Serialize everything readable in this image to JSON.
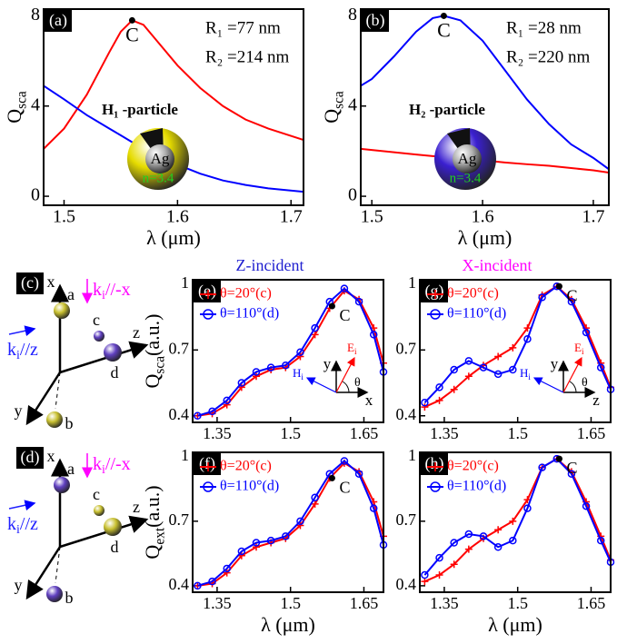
{
  "chart_data": [
    {
      "type": "line",
      "panel_label": "(a)",
      "x_label": "λ (μm)",
      "y_label": [
        "Q",
        "sca"
      ],
      "xlim": [
        1.482,
        1.711
      ],
      "ylim": [
        -0.4,
        8.3
      ],
      "xticks": [
        1.5,
        1.6,
        1.7
      ],
      "yticks": [
        0,
        4,
        8
      ],
      "x": [
        1.482,
        1.5,
        1.52,
        1.54,
        1.55,
        1.56,
        1.57,
        1.58,
        1.6,
        1.62,
        1.64,
        1.66,
        1.68,
        1.711
      ],
      "series": [
        {
          "color": "#ff0000",
          "values": [
            2.1,
            3.0,
            4.5,
            6.4,
            7.3,
            7.8,
            7.6,
            7.0,
            5.8,
            4.8,
            4.0,
            3.4,
            3.0,
            2.5
          ]
        },
        {
          "color": "#0000ff",
          "values": [
            4.9,
            4.3,
            3.6,
            3.0,
            2.7,
            2.4,
            2.15,
            1.9,
            1.4,
            1.0,
            0.7,
            0.5,
            0.35,
            0.2
          ]
        }
      ],
      "point": {
        "text": "C",
        "x": 1.56,
        "y": 7.8
      },
      "notes": [
        "R₁ =77 nm",
        "R₂ =214 nm"
      ],
      "particle": {
        "name": "H₁ -particle",
        "core": "Ag",
        "index": "n=3.4",
        "shell_color": "#e6dc00"
      }
    },
    {
      "type": "line",
      "panel_label": "(b)",
      "x_label": "λ (μm)",
      "y_label": [
        "Q",
        "sca"
      ],
      "xlim": [
        1.49,
        1.714
      ],
      "ylim": [
        -0.4,
        8.3
      ],
      "xticks": [
        1.5,
        1.6,
        1.7
      ],
      "yticks": [
        0,
        4,
        8
      ],
      "x": [
        1.49,
        1.5,
        1.52,
        1.54,
        1.555,
        1.565,
        1.58,
        1.6,
        1.62,
        1.64,
        1.66,
        1.68,
        1.7,
        1.714
      ],
      "series": [
        {
          "color": "#ff0000",
          "values": [
            2.1,
            2.05,
            1.95,
            1.85,
            1.78,
            1.74,
            1.68,
            1.6,
            1.5,
            1.42,
            1.35,
            1.25,
            1.15,
            1.05
          ]
        },
        {
          "color": "#0000ff",
          "values": [
            4.9,
            5.2,
            6.2,
            7.3,
            7.9,
            8.0,
            7.8,
            6.9,
            5.6,
            4.3,
            3.2,
            2.3,
            1.7,
            1.2
          ]
        }
      ],
      "point": {
        "text": "C",
        "x": 1.565,
        "y": 8.0
      },
      "notes": [
        "R₁ =28 nm",
        "R₂ =220 nm"
      ],
      "particle": {
        "name": "H₂ -particle",
        "core": "Ag",
        "index": "n=3.4",
        "shell_color": "#3a1fd0"
      }
    },
    {
      "type": "line",
      "panel_label": "(e)",
      "title": "Z-incident",
      "title_color": "#2020d0",
      "y_label": [
        "Q",
        "sca",
        "(a.u.)"
      ],
      "xlim": [
        1.3,
        1.69
      ],
      "ylim": [
        0.37,
        1.02
      ],
      "xticks": [
        1.35,
        1.5,
        1.65
      ],
      "yticks": [
        0.4,
        0.7,
        1
      ],
      "x": [
        1.31,
        1.34,
        1.37,
        1.4,
        1.43,
        1.46,
        1.49,
        1.52,
        1.55,
        1.58,
        1.61,
        1.64,
        1.67,
        1.69
      ],
      "series": [
        {
          "name": "θ=20°(c)",
          "color": "#ff0000",
          "marker": "+",
          "values": [
            0.4,
            0.41,
            0.45,
            0.53,
            0.58,
            0.61,
            0.62,
            0.67,
            0.77,
            0.89,
            0.97,
            0.93,
            0.8,
            0.64
          ]
        },
        {
          "name": "θ=110°(d)",
          "color": "#0000ff",
          "marker": "o",
          "values": [
            0.4,
            0.42,
            0.47,
            0.55,
            0.6,
            0.62,
            0.63,
            0.69,
            0.8,
            0.92,
            0.98,
            0.92,
            0.77,
            0.6
          ]
        }
      ],
      "point": {
        "text": "C",
        "x": 1.585,
        "y": 0.9
      },
      "inset": {
        "axes": [
          "y",
          "x"
        ],
        "E": [
          "E",
          "i"
        ],
        "H": [
          "H",
          "i"
        ],
        "angle": "θ"
      }
    },
    {
      "type": "line",
      "panel_label": "(f)",
      "x_label": "λ (μm)",
      "y_label": [
        "Q",
        "ext",
        "(a.u.)"
      ],
      "xlim": [
        1.3,
        1.69
      ],
      "ylim": [
        0.37,
        1.02
      ],
      "xticks": [
        1.35,
        1.5,
        1.65
      ],
      "yticks": [
        0.4,
        0.7,
        1
      ],
      "x": [
        1.31,
        1.34,
        1.37,
        1.4,
        1.43,
        1.46,
        1.49,
        1.52,
        1.55,
        1.58,
        1.61,
        1.64,
        1.67,
        1.69
      ],
      "series": [
        {
          "name": "θ=20°(c)",
          "color": "#ff0000",
          "marker": "+",
          "values": [
            0.4,
            0.41,
            0.46,
            0.54,
            0.58,
            0.6,
            0.62,
            0.68,
            0.78,
            0.9,
            0.97,
            0.93,
            0.79,
            0.63
          ]
        },
        {
          "name": "θ=110°(d)",
          "color": "#0000ff",
          "marker": "o",
          "values": [
            0.4,
            0.42,
            0.48,
            0.56,
            0.6,
            0.61,
            0.63,
            0.7,
            0.81,
            0.92,
            0.98,
            0.92,
            0.76,
            0.59
          ]
        }
      ],
      "point": {
        "text": "C",
        "x": 1.585,
        "y": 0.9
      }
    },
    {
      "type": "line",
      "panel_label": "(g)",
      "title": "X-incident",
      "title_color": "#ff00ff",
      "xlim": [
        1.3,
        1.69
      ],
      "ylim": [
        0.37,
        1.02
      ],
      "xticks": [
        1.35,
        1.5,
        1.65
      ],
      "yticks": [
        0.4,
        0.7,
        1
      ],
      "x": [
        1.31,
        1.34,
        1.37,
        1.4,
        1.43,
        1.46,
        1.49,
        1.52,
        1.55,
        1.58,
        1.61,
        1.64,
        1.67,
        1.69
      ],
      "series": [
        {
          "name": "θ=20°(c)",
          "color": "#ff0000",
          "marker": "+",
          "values": [
            0.44,
            0.47,
            0.52,
            0.58,
            0.63,
            0.67,
            0.71,
            0.8,
            0.95,
            0.99,
            0.93,
            0.8,
            0.64,
            0.53
          ]
        },
        {
          "name": "θ=110°(d)",
          "color": "#0000ff",
          "marker": "o",
          "values": [
            0.46,
            0.53,
            0.61,
            0.65,
            0.62,
            0.59,
            0.61,
            0.75,
            0.94,
            0.99,
            0.92,
            0.78,
            0.62,
            0.52
          ]
        }
      ],
      "point": {
        "text": "C",
        "x": 1.585,
        "y": 0.99
      },
      "inset": {
        "axes": [
          "y",
          "z"
        ],
        "E": [
          "E",
          "i"
        ],
        "H": [
          "H",
          "i"
        ],
        "angle": "θ"
      }
    },
    {
      "type": "line",
      "panel_label": "(h)",
      "x_label": "λ (μm)",
      "xlim": [
        1.3,
        1.69
      ],
      "ylim": [
        0.37,
        1.02
      ],
      "xticks": [
        1.35,
        1.5,
        1.65
      ],
      "yticks": [
        0.4,
        0.7,
        1
      ],
      "x": [
        1.31,
        1.34,
        1.37,
        1.4,
        1.43,
        1.46,
        1.49,
        1.52,
        1.55,
        1.58,
        1.61,
        1.64,
        1.67,
        1.69
      ],
      "series": [
        {
          "name": "θ=20°(c)",
          "color": "#ff0000",
          "marker": "+",
          "values": [
            0.42,
            0.45,
            0.5,
            0.57,
            0.62,
            0.66,
            0.7,
            0.8,
            0.95,
            0.99,
            0.93,
            0.79,
            0.63,
            0.52
          ]
        },
        {
          "name": "θ=110°(d)",
          "color": "#0000ff",
          "marker": "o",
          "values": [
            0.45,
            0.53,
            0.6,
            0.64,
            0.63,
            0.58,
            0.61,
            0.76,
            0.95,
            0.99,
            0.92,
            0.77,
            0.61,
            0.51
          ]
        }
      ],
      "point": {
        "text": "C",
        "x": 1.585,
        "y": 0.99
      }
    }
  ],
  "diagrams": [
    {
      "label": "(c)",
      "axes": [
        "x",
        "y",
        "z"
      ],
      "particles": [
        {
          "name": "a",
          "color": "#c8c030"
        },
        {
          "name": "b",
          "color": "#c8c030"
        },
        {
          "name": "c",
          "color": "#6040c0"
        },
        {
          "name": "d",
          "color": "#6040c0"
        }
      ],
      "beams": [
        {
          "parts": [
            "k",
            "i",
            "//z"
          ],
          "color": "#2020ff"
        },
        {
          "parts": [
            "k",
            "i",
            "//-x"
          ],
          "color": "#ff00ff"
        }
      ]
    },
    {
      "label": "(d)",
      "axes": [
        "x",
        "y",
        "z"
      ],
      "particles": [
        {
          "name": "a",
          "color": "#6040c0"
        },
        {
          "name": "b",
          "color": "#6040c0"
        },
        {
          "name": "c",
          "color": "#c8c030"
        },
        {
          "name": "d",
          "color": "#c8c030"
        }
      ],
      "beams": [
        {
          "parts": [
            "k",
            "i",
            "//z"
          ],
          "color": "#2020ff"
        },
        {
          "parts": [
            "k",
            "i",
            "//-x"
          ],
          "color": "#ff00ff"
        }
      ]
    }
  ]
}
